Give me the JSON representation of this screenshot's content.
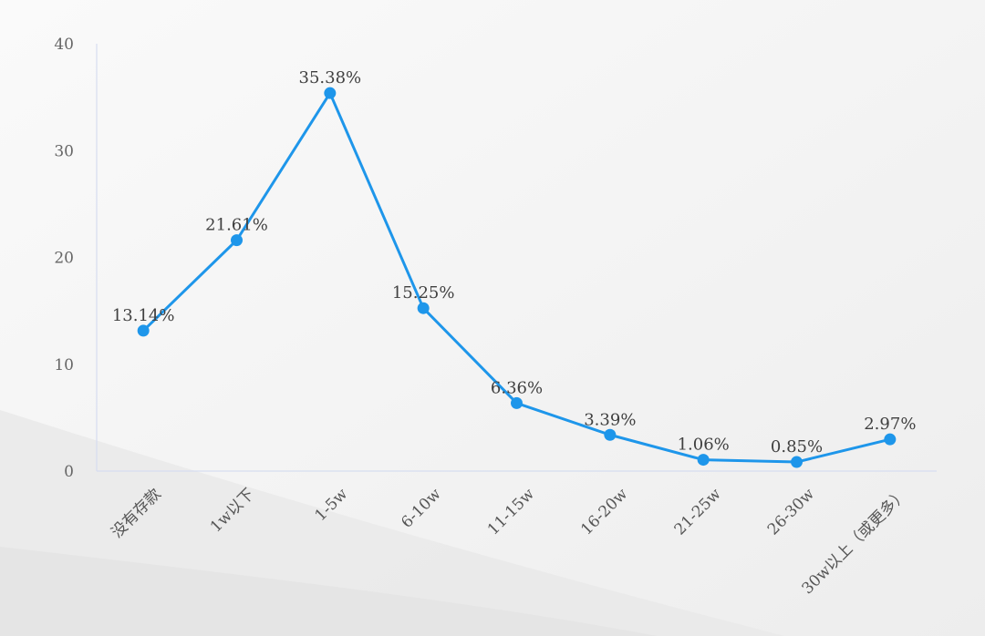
{
  "chart_data": {
    "type": "line",
    "title": "",
    "xlabel": "",
    "ylabel": "",
    "categories": [
      "没有存款",
      "1w以下",
      "1-5w",
      "6-10w",
      "11-15w",
      "16-20w",
      "21-25w",
      "26-30w",
      "30w以上（或更多）"
    ],
    "series": [
      {
        "values": [
          13.14,
          21.61,
          35.38,
          15.25,
          6.36,
          3.39,
          1.06,
          0.85,
          2.97
        ],
        "labels": [
          "13.14%",
          "21.61%",
          "35.38%",
          "15.25%",
          "6.36%",
          "3.39%",
          "1.06%",
          "0.85%",
          "2.97%"
        ]
      }
    ],
    "ylim": [
      0,
      40
    ],
    "yticks": [
      "0",
      "10",
      "20",
      "30",
      "40"
    ],
    "grid": false,
    "legend": "none",
    "colors": {
      "line": "#1E96EA",
      "marker": "#1E96EA",
      "axis": "#D6DDF0",
      "background": "#F4F4F4"
    }
  }
}
